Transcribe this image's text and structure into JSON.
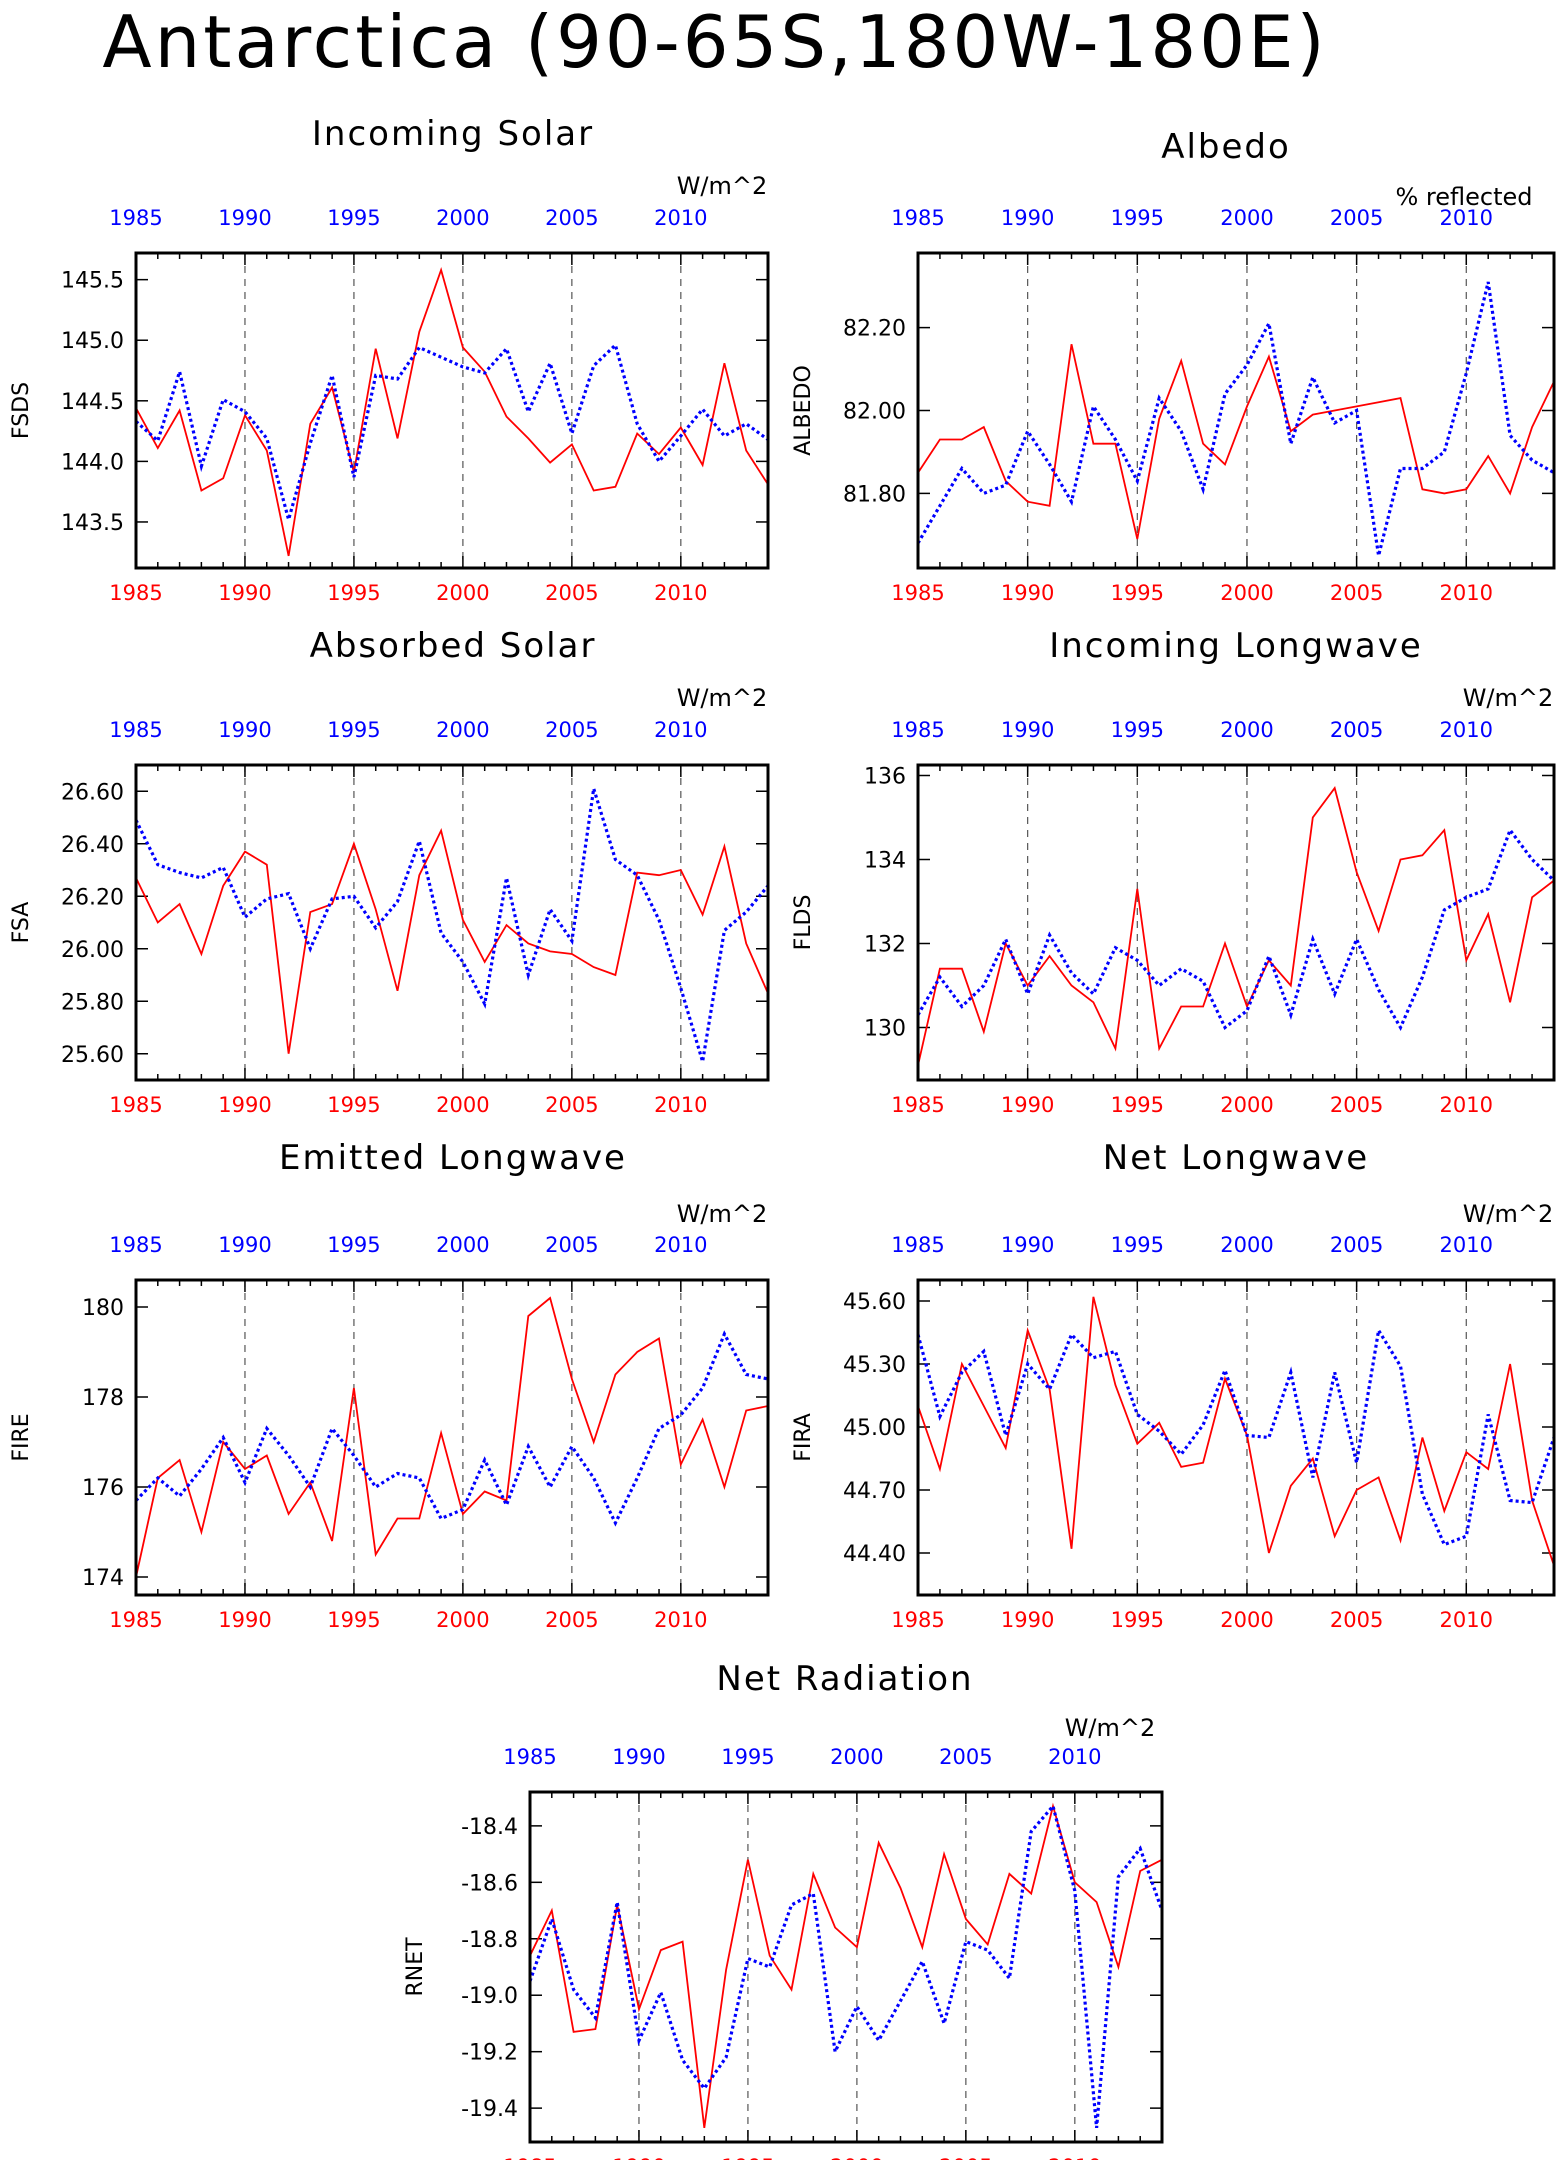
{
  "page_title": "Antarctica (90-65S,180W-180E)",
  "colors": {
    "red_series": "#ff0000",
    "blue_series": "#0000ff",
    "frame": "#000000"
  },
  "chart_data": [
    {
      "type": "line",
      "title": "Incoming Solar",
      "units": "W/m^2",
      "ylabel": "FSDS",
      "xlim": [
        1985,
        2014
      ],
      "ylim": [
        143.12,
        145.72
      ],
      "yticks": [
        "145.5",
        "145.0",
        "144.5",
        "144.0",
        "143.5"
      ],
      "xticks": [
        "1985",
        "1990",
        "1995",
        "2000",
        "2005",
        "2010"
      ],
      "x": [
        1985,
        1986,
        1987,
        1988,
        1989,
        1990,
        1991,
        1992,
        1993,
        1994,
        1995,
        1996,
        1997,
        1998,
        1999,
        2000,
        2001,
        2002,
        2003,
        2004,
        2005,
        2006,
        2007,
        2008,
        2009,
        2010,
        2011,
        2012,
        2013,
        2014
      ],
      "series": [
        {
          "color": "red",
          "values": [
            144.44,
            144.11,
            144.42,
            143.76,
            143.86,
            144.38,
            144.09,
            143.22,
            144.31,
            144.61,
            143.91,
            144.93,
            144.19,
            145.07,
            145.58,
            144.94,
            144.74,
            144.37,
            144.19,
            143.99,
            144.14,
            143.76,
            143.79,
            144.23,
            144.06,
            144.28,
            143.97,
            144.81,
            144.09,
            143.81
          ]
        },
        {
          "color": "blue",
          "values": [
            144.33,
            144.17,
            144.74,
            143.96,
            144.51,
            144.41,
            144.19,
            143.52,
            144.15,
            144.71,
            143.87,
            144.71,
            144.68,
            144.94,
            144.86,
            144.78,
            144.73,
            144.93,
            144.41,
            144.81,
            144.23,
            144.79,
            144.96,
            144.31,
            144.0,
            144.21,
            144.43,
            144.21,
            144.31,
            144.18
          ]
        }
      ]
    },
    {
      "type": "line",
      "title": "Albedo",
      "units": "% reflected",
      "ylabel": "ALBEDO",
      "xlim": [
        1985,
        2014
      ],
      "ylim": [
        81.62,
        82.38
      ],
      "yticks": [
        "82.20",
        "82.00",
        "81.80"
      ],
      "xticks": [
        "1985",
        "1990",
        "1995",
        "2000",
        "2005",
        "2010"
      ],
      "x": [
        1985,
        1986,
        1987,
        1988,
        1989,
        1990,
        1991,
        1992,
        1993,
        1994,
        1995,
        1996,
        1997,
        1998,
        1999,
        2000,
        2001,
        2002,
        2003,
        2004,
        2005,
        2006,
        2007,
        2008,
        2009,
        2010,
        2011,
        2012,
        2013,
        2014
      ],
      "series": [
        {
          "color": "red",
          "values": [
            81.85,
            81.93,
            81.93,
            81.96,
            81.83,
            81.78,
            81.77,
            82.16,
            81.92,
            81.92,
            81.69,
            81.98,
            82.12,
            81.92,
            81.87,
            82.01,
            82.13,
            81.95,
            81.99,
            82.0,
            82.01,
            82.02,
            82.03,
            81.81,
            81.8,
            81.81,
            81.89,
            81.8,
            81.96,
            82.07
          ]
        },
        {
          "color": "blue",
          "values": [
            81.68,
            81.77,
            81.86,
            81.8,
            81.82,
            81.95,
            81.87,
            81.78,
            82.01,
            81.93,
            81.83,
            82.03,
            81.95,
            81.81,
            82.04,
            82.11,
            82.21,
            81.92,
            82.08,
            81.97,
            82.0,
            81.65,
            81.86,
            81.86,
            81.9,
            82.09,
            82.31,
            81.94,
            81.88,
            81.85
          ]
        }
      ]
    },
    {
      "type": "line",
      "title": "Absorbed Solar",
      "units": "W/m^2",
      "ylabel": "FSA",
      "xlim": [
        1985,
        2014
      ],
      "ylim": [
        25.5,
        26.7
      ],
      "yticks": [
        "26.60",
        "26.40",
        "26.20",
        "26.00",
        "25.80",
        "25.60"
      ],
      "xticks": [
        "1985",
        "1990",
        "1995",
        "2000",
        "2005",
        "2010"
      ],
      "x": [
        1985,
        1986,
        1987,
        1988,
        1989,
        1990,
        1991,
        1992,
        1993,
        1994,
        1995,
        1996,
        1997,
        1998,
        1999,
        2000,
        2001,
        2002,
        2003,
        2004,
        2005,
        2006,
        2007,
        2008,
        2009,
        2010,
        2011,
        2012,
        2013,
        2014
      ],
      "series": [
        {
          "color": "red",
          "values": [
            26.27,
            26.1,
            26.17,
            25.98,
            26.24,
            26.37,
            26.32,
            25.6,
            26.14,
            26.17,
            26.4,
            26.15,
            25.84,
            26.28,
            26.45,
            26.11,
            25.95,
            26.09,
            26.02,
            25.99,
            25.98,
            25.93,
            25.9,
            26.29,
            26.28,
            26.3,
            26.13,
            26.39,
            26.02,
            25.83
          ]
        },
        {
          "color": "blue",
          "values": [
            26.49,
            26.32,
            26.29,
            26.27,
            26.31,
            26.12,
            26.19,
            26.21,
            26.0,
            26.19,
            26.2,
            26.08,
            26.18,
            26.41,
            26.06,
            25.95,
            25.79,
            26.27,
            25.9,
            26.15,
            26.03,
            26.61,
            26.34,
            26.28,
            26.11,
            25.85,
            25.57,
            26.07,
            26.14,
            26.24
          ]
        }
      ]
    },
    {
      "type": "line",
      "title": "Incoming Longwave",
      "units": "W/m^2",
      "ylabel": "FLDS",
      "xlim": [
        1985,
        2014
      ],
      "ylim": [
        128.75,
        136.25
      ],
      "yticks": [
        "136",
        "134",
        "132",
        "130"
      ],
      "xticks": [
        "1985",
        "1990",
        "1995",
        "2000",
        "2005",
        "2010"
      ],
      "x": [
        1985,
        1986,
        1987,
        1988,
        1989,
        1990,
        1991,
        1992,
        1993,
        1994,
        1995,
        1996,
        1997,
        1998,
        1999,
        2000,
        2001,
        2002,
        2003,
        2004,
        2005,
        2006,
        2007,
        2008,
        2009,
        2010,
        2011,
        2012,
        2013,
        2014
      ],
      "series": [
        {
          "color": "red",
          "values": [
            129.1,
            131.4,
            131.4,
            129.9,
            132.0,
            131.0,
            131.7,
            131.0,
            130.6,
            129.5,
            133.3,
            129.5,
            130.5,
            130.5,
            132.0,
            130.5,
            131.6,
            131.0,
            135.0,
            135.7,
            133.7,
            132.3,
            134.0,
            134.1,
            134.7,
            131.6,
            132.7,
            130.6,
            133.1,
            133.5
          ]
        },
        {
          "color": "blue",
          "values": [
            130.3,
            131.2,
            130.5,
            131.0,
            132.1,
            130.8,
            132.2,
            131.3,
            130.8,
            131.9,
            131.6,
            131.0,
            131.4,
            131.1,
            130.0,
            130.4,
            131.7,
            130.3,
            132.1,
            130.8,
            132.1,
            130.9,
            130.0,
            131.2,
            132.8,
            133.1,
            133.3,
            134.7,
            134.0,
            133.5
          ]
        }
      ]
    },
    {
      "type": "line",
      "title": "Emitted Longwave",
      "units": "W/m^2",
      "ylabel": "FIRE",
      "xlim": [
        1985,
        2014
      ],
      "ylim": [
        173.6,
        180.6
      ],
      "yticks": [
        "180",
        "178",
        "176",
        "174"
      ],
      "xticks": [
        "1985",
        "1990",
        "1995",
        "2000",
        "2005",
        "2010"
      ],
      "x": [
        1985,
        1986,
        1987,
        1988,
        1989,
        1990,
        1991,
        1992,
        1993,
        1994,
        1995,
        1996,
        1997,
        1998,
        1999,
        2000,
        2001,
        2002,
        2003,
        2004,
        2005,
        2006,
        2007,
        2008,
        2009,
        2010,
        2011,
        2012,
        2013,
        2014
      ],
      "series": [
        {
          "color": "red",
          "values": [
            174.0,
            176.2,
            176.6,
            175.0,
            177.0,
            176.4,
            176.7,
            175.4,
            176.1,
            174.8,
            178.2,
            174.5,
            175.3,
            175.3,
            177.2,
            175.4,
            175.9,
            175.7,
            179.8,
            180.2,
            178.4,
            177.0,
            178.5,
            179.0,
            179.3,
            176.5,
            177.5,
            176.0,
            177.7,
            177.8
          ]
        },
        {
          "color": "blue",
          "values": [
            175.7,
            176.2,
            175.8,
            176.4,
            177.1,
            176.1,
            177.3,
            176.7,
            176.0,
            177.3,
            176.7,
            176.0,
            176.3,
            176.2,
            175.3,
            175.5,
            176.6,
            175.6,
            176.9,
            176.0,
            176.9,
            176.2,
            175.2,
            176.2,
            177.3,
            177.6,
            178.2,
            179.4,
            178.5,
            178.4
          ]
        }
      ]
    },
    {
      "type": "line",
      "title": "Net Longwave",
      "units": "W/m^2",
      "ylabel": "FIRA",
      "xlim": [
        1985,
        2014
      ],
      "ylim": [
        44.2,
        45.7
      ],
      "yticks": [
        "45.60",
        "45.30",
        "45.00",
        "44.70",
        "44.40"
      ],
      "xticks": [
        "1985",
        "1990",
        "1995",
        "2000",
        "2005",
        "2010"
      ],
      "x": [
        1985,
        1986,
        1987,
        1988,
        1989,
        1990,
        1991,
        1992,
        1993,
        1994,
        1995,
        1996,
        1997,
        1998,
        1999,
        2000,
        2001,
        2002,
        2003,
        2004,
        2005,
        2006,
        2007,
        2008,
        2009,
        2010,
        2011,
        2012,
        2013,
        2014
      ],
      "series": [
        {
          "color": "red",
          "values": [
            45.1,
            44.8,
            45.3,
            45.1,
            44.9,
            45.46,
            45.18,
            44.42,
            45.62,
            45.2,
            44.92,
            45.02,
            44.81,
            44.83,
            45.23,
            44.96,
            44.4,
            44.72,
            44.85,
            44.48,
            44.7,
            44.76,
            44.46,
            44.95,
            44.6,
            44.88,
            44.8,
            45.3,
            44.65,
            44.34
          ]
        },
        {
          "color": "blue",
          "values": [
            45.44,
            45.05,
            45.26,
            45.36,
            44.96,
            45.3,
            45.18,
            45.44,
            45.33,
            45.36,
            45.06,
            44.98,
            44.87,
            45.01,
            45.27,
            44.96,
            44.95,
            45.26,
            44.76,
            45.26,
            44.83,
            45.46,
            45.29,
            44.68,
            44.44,
            44.48,
            45.06,
            44.65,
            44.64,
            44.95
          ]
        }
      ]
    },
    {
      "type": "line",
      "title": "Net Radiation",
      "units": "W/m^2",
      "ylabel": "RNET",
      "xlim": [
        1985,
        2014
      ],
      "ylim": [
        -19.52,
        -18.28
      ],
      "yticks": [
        "-18.4",
        "-18.6",
        "-18.8",
        "-19.0",
        "-19.2",
        "-19.4"
      ],
      "xticks": [
        "1985",
        "1990",
        "1995",
        "2000",
        "2005",
        "2010"
      ],
      "x": [
        1985,
        1986,
        1987,
        1988,
        1989,
        1990,
        1991,
        1992,
        1993,
        1994,
        1995,
        1996,
        1997,
        1998,
        1999,
        2000,
        2001,
        2002,
        2003,
        2004,
        2005,
        2006,
        2007,
        2008,
        2009,
        2010,
        2011,
        2012,
        2013,
        2014
      ],
      "series": [
        {
          "color": "red",
          "values": [
            -18.86,
            -18.7,
            -19.13,
            -19.12,
            -18.68,
            -19.05,
            -18.84,
            -18.81,
            -19.47,
            -18.91,
            -18.52,
            -18.86,
            -18.98,
            -18.57,
            -18.76,
            -18.83,
            -18.46,
            -18.62,
            -18.83,
            -18.5,
            -18.73,
            -18.82,
            -18.57,
            -18.64,
            -18.33,
            -18.6,
            -18.67,
            -18.9,
            -18.56,
            -18.52
          ]
        },
        {
          "color": "blue",
          "values": [
            -18.95,
            -18.73,
            -18.98,
            -19.08,
            -18.67,
            -19.16,
            -18.99,
            -19.23,
            -19.33,
            -19.22,
            -18.87,
            -18.9,
            -18.68,
            -18.64,
            -19.2,
            -19.04,
            -19.16,
            -19.02,
            -18.88,
            -19.1,
            -18.81,
            -18.84,
            -18.94,
            -18.42,
            -18.33,
            -18.63,
            -19.47,
            -18.58,
            -18.48,
            -18.7
          ]
        }
      ]
    }
  ]
}
